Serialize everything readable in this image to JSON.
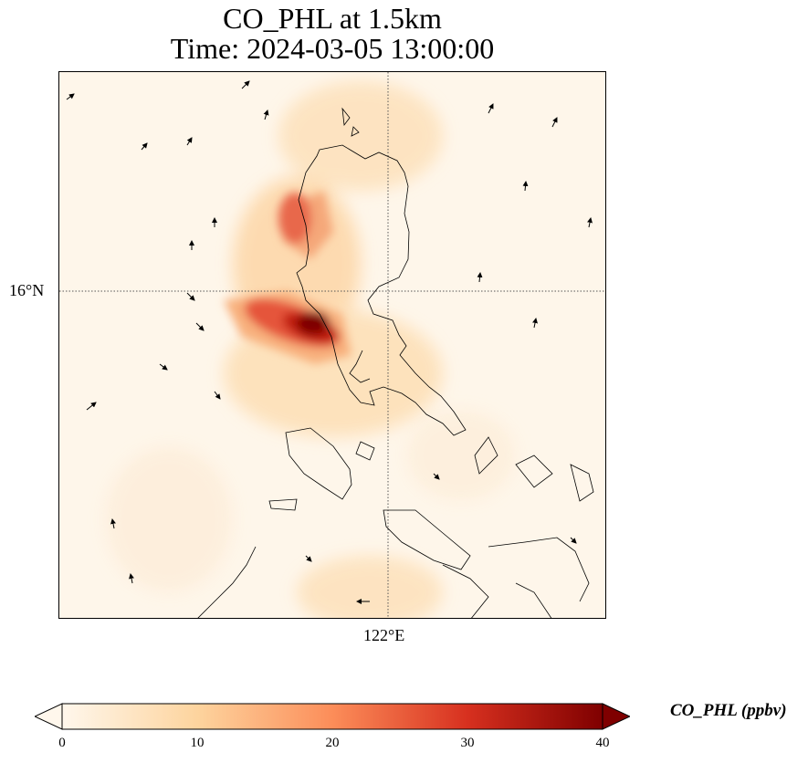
{
  "title": {
    "line1": "CO_PHL at 1.5km",
    "line2": "Time: 2024-03-05 13:00:00"
  },
  "map": {
    "lat_label": "16°N",
    "lon_label": "122°E",
    "gridline_style": "dotted",
    "colors": {
      "background": "#fef6ea",
      "coastline": "#000000",
      "arrow": "#000000"
    }
  },
  "colorbar": {
    "label": "CO_PHL (ppbv)",
    "ticks": [
      "0",
      "10",
      "20",
      "30",
      "40"
    ],
    "min": 0,
    "max": 40,
    "extend": "both",
    "colormap": "OrRd",
    "colors": [
      "#fff7ec",
      "#fdd49e",
      "#fc8d59",
      "#d7301f",
      "#7f0000"
    ]
  },
  "chart_data": {
    "type": "heatmap",
    "variable": "CO_PHL",
    "units": "ppbv",
    "level": "1.5km",
    "time": "2024-03-05 13:00:00",
    "value_range": [
      0,
      40
    ],
    "plumes": [
      {
        "region": "west of northern Luzon",
        "approx_peak_ppbv": 24
      },
      {
        "region": "Manila Bay / central Luzon",
        "approx_peak_ppbv": 40
      },
      {
        "region": "south of Mindoro",
        "approx_peak_ppbv": 8
      }
    ]
  }
}
